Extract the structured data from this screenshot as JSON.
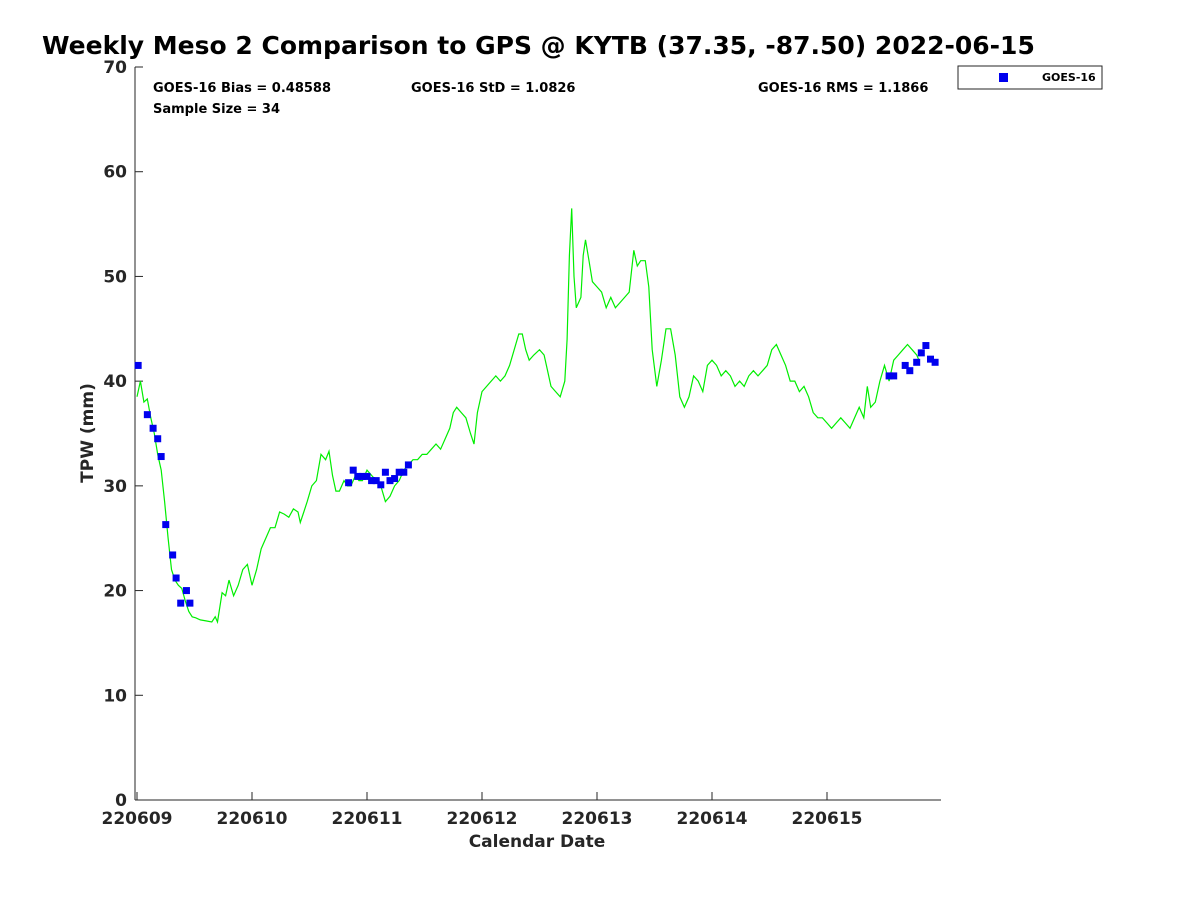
{
  "chart_data": {
    "type": "scatter",
    "title": "Weekly Meso 2 Comparison to GPS @ KYTB (37.35, -87.50) 2022-06-15",
    "xlabel": "Calendar Date",
    "ylabel": "TPW (mm)",
    "xlim": [
      0,
      7.0
    ],
    "ylim": [
      0,
      70
    ],
    "x_ticks": [
      {
        "x": 0,
        "label": "220609"
      },
      {
        "x": 1,
        "label": "220610"
      },
      {
        "x": 2,
        "label": "220611"
      },
      {
        "x": 3,
        "label": "220612"
      },
      {
        "x": 4,
        "label": "220613"
      },
      {
        "x": 5,
        "label": "220614"
      },
      {
        "x": 6,
        "label": "220615"
      }
    ],
    "y_ticks": [
      0,
      10,
      20,
      30,
      40,
      50,
      60,
      70
    ],
    "stats": {
      "bias": "GOES-16 Bias = 0.48588",
      "std": "GOES-16 StD = 1.0826",
      "rms": "GOES-16 RMS = 1.1866",
      "sample": "Sample Size = 34"
    },
    "legend": {
      "position": "top-right, outside plot",
      "entries": [
        {
          "name": "GOES-16",
          "color": "#0000ee"
        }
      ]
    },
    "colors": {
      "gps_line": "#00ee00",
      "goes_points": "#0000ee"
    },
    "series": [
      {
        "name": "GPS",
        "kind": "line",
        "points": [
          [
            0.0,
            38.5
          ],
          [
            0.03,
            40.0
          ],
          [
            0.06,
            38.0
          ],
          [
            0.09,
            38.3
          ],
          [
            0.12,
            36.5
          ],
          [
            0.15,
            35.0
          ],
          [
            0.18,
            33.0
          ],
          [
            0.21,
            31.5
          ],
          [
            0.24,
            28.5
          ],
          [
            0.27,
            25.0
          ],
          [
            0.3,
            22.0
          ],
          [
            0.33,
            21.0
          ],
          [
            0.36,
            20.5
          ],
          [
            0.39,
            20.2
          ],
          [
            0.42,
            19.0
          ],
          [
            0.45,
            18.0
          ],
          [
            0.48,
            17.5
          ],
          [
            0.51,
            17.4
          ],
          [
            0.55,
            17.2
          ],
          [
            0.6,
            17.1
          ],
          [
            0.65,
            17.0
          ],
          [
            0.68,
            17.5
          ],
          [
            0.7,
            17.0
          ],
          [
            0.74,
            19.8
          ],
          [
            0.77,
            19.5
          ],
          [
            0.8,
            21.0
          ],
          [
            0.84,
            19.5
          ],
          [
            0.88,
            20.5
          ],
          [
            0.92,
            22.0
          ],
          [
            0.96,
            22.5
          ],
          [
            1.0,
            20.5
          ],
          [
            1.04,
            22.0
          ],
          [
            1.08,
            24.0
          ],
          [
            1.12,
            25.0
          ],
          [
            1.16,
            26.0
          ],
          [
            1.2,
            26.0
          ],
          [
            1.24,
            27.5
          ],
          [
            1.28,
            27.3
          ],
          [
            1.32,
            27.0
          ],
          [
            1.36,
            27.8
          ],
          [
            1.4,
            27.5
          ],
          [
            1.42,
            26.5
          ],
          [
            1.45,
            27.5
          ],
          [
            1.48,
            28.5
          ],
          [
            1.52,
            30.0
          ],
          [
            1.56,
            30.5
          ],
          [
            1.6,
            33.0
          ],
          [
            1.64,
            32.5
          ],
          [
            1.67,
            33.3
          ],
          [
            1.7,
            31.0
          ],
          [
            1.73,
            29.5
          ],
          [
            1.76,
            29.5
          ],
          [
            1.8,
            30.5
          ],
          [
            1.83,
            30.0
          ],
          [
            1.86,
            30.0
          ],
          [
            1.9,
            31.0
          ],
          [
            1.93,
            30.5
          ],
          [
            1.96,
            30.5
          ],
          [
            2.0,
            31.5
          ],
          [
            2.04,
            31.0
          ],
          [
            2.08,
            30.5
          ],
          [
            2.12,
            30.0
          ],
          [
            2.16,
            28.5
          ],
          [
            2.2,
            29.0
          ],
          [
            2.24,
            30.0
          ],
          [
            2.28,
            30.5
          ],
          [
            2.32,
            31.5
          ],
          [
            2.36,
            32.0
          ],
          [
            2.4,
            32.5
          ],
          [
            2.44,
            32.5
          ],
          [
            2.48,
            33.0
          ],
          [
            2.52,
            33.0
          ],
          [
            2.56,
            33.5
          ],
          [
            2.6,
            34.0
          ],
          [
            2.64,
            33.5
          ],
          [
            2.68,
            34.5
          ],
          [
            2.72,
            35.5
          ],
          [
            2.75,
            37.0
          ],
          [
            2.78,
            37.5
          ],
          [
            2.82,
            37.0
          ],
          [
            2.86,
            36.5
          ],
          [
            2.9,
            35.0
          ],
          [
            2.93,
            34.0
          ],
          [
            2.96,
            37.0
          ],
          [
            3.0,
            39.0
          ],
          [
            3.04,
            39.5
          ],
          [
            3.08,
            40.0
          ],
          [
            3.12,
            40.5
          ],
          [
            3.16,
            40.0
          ],
          [
            3.2,
            40.5
          ],
          [
            3.24,
            41.5
          ],
          [
            3.28,
            43.0
          ],
          [
            3.32,
            44.5
          ],
          [
            3.35,
            44.5
          ],
          [
            3.38,
            43.0
          ],
          [
            3.41,
            42.0
          ],
          [
            3.45,
            42.5
          ],
          [
            3.5,
            43.0
          ],
          [
            3.54,
            42.5
          ],
          [
            3.56,
            41.5
          ],
          [
            3.6,
            39.5
          ],
          [
            3.64,
            39.0
          ],
          [
            3.68,
            38.5
          ],
          [
            3.72,
            40.0
          ],
          [
            3.74,
            44.0
          ],
          [
            3.76,
            52.0
          ],
          [
            3.78,
            56.5
          ],
          [
            3.8,
            50.0
          ],
          [
            3.82,
            47.0
          ],
          [
            3.86,
            48.0
          ],
          [
            3.88,
            52.0
          ],
          [
            3.9,
            53.5
          ],
          [
            3.93,
            51.5
          ],
          [
            3.96,
            49.5
          ],
          [
            4.0,
            49.0
          ],
          [
            4.04,
            48.5
          ],
          [
            4.08,
            47.0
          ],
          [
            4.12,
            48.0
          ],
          [
            4.16,
            47.0
          ],
          [
            4.2,
            47.5
          ],
          [
            4.24,
            48.0
          ],
          [
            4.28,
            48.5
          ],
          [
            4.32,
            52.5
          ],
          [
            4.35,
            51.0
          ],
          [
            4.38,
            51.5
          ],
          [
            4.42,
            51.5
          ],
          [
            4.45,
            49.0
          ],
          [
            4.48,
            43.0
          ],
          [
            4.52,
            39.5
          ],
          [
            4.56,
            42.0
          ],
          [
            4.6,
            45.0
          ],
          [
            4.64,
            45.0
          ],
          [
            4.68,
            42.5
          ],
          [
            4.72,
            38.5
          ],
          [
            4.76,
            37.5
          ],
          [
            4.8,
            38.5
          ],
          [
            4.84,
            40.5
          ],
          [
            4.88,
            40.0
          ],
          [
            4.92,
            39.0
          ],
          [
            4.96,
            41.5
          ],
          [
            5.0,
            42.0
          ],
          [
            5.04,
            41.5
          ],
          [
            5.08,
            40.5
          ],
          [
            5.12,
            41.0
          ],
          [
            5.16,
            40.5
          ],
          [
            5.2,
            39.5
          ],
          [
            5.24,
            40.0
          ],
          [
            5.28,
            39.5
          ],
          [
            5.32,
            40.5
          ],
          [
            5.36,
            41.0
          ],
          [
            5.4,
            40.5
          ],
          [
            5.44,
            41.0
          ],
          [
            5.48,
            41.5
          ],
          [
            5.52,
            43.0
          ],
          [
            5.56,
            43.5
          ],
          [
            5.6,
            42.5
          ],
          [
            5.64,
            41.5
          ],
          [
            5.68,
            40.0
          ],
          [
            5.72,
            40.0
          ],
          [
            5.76,
            39.0
          ],
          [
            5.8,
            39.5
          ],
          [
            5.84,
            38.5
          ],
          [
            5.88,
            37.0
          ],
          [
            5.92,
            36.5
          ],
          [
            5.96,
            36.5
          ],
          [
            6.0,
            36.0
          ],
          [
            6.04,
            35.5
          ],
          [
            6.08,
            36.0
          ],
          [
            6.12,
            36.5
          ],
          [
            6.16,
            36.0
          ],
          [
            6.2,
            35.5
          ],
          [
            6.24,
            36.5
          ],
          [
            6.28,
            37.5
          ],
          [
            6.32,
            36.5
          ],
          [
            6.35,
            39.5
          ],
          [
            6.38,
            37.5
          ],
          [
            6.42,
            38.0
          ],
          [
            6.46,
            40.0
          ],
          [
            6.5,
            41.5
          ],
          [
            6.54,
            40.0
          ],
          [
            6.58,
            42.0
          ],
          [
            6.62,
            42.5
          ],
          [
            6.66,
            43.0
          ],
          [
            6.7,
            43.5
          ],
          [
            6.74,
            43.0
          ],
          [
            6.78,
            42.5
          ],
          [
            6.8,
            42.0
          ]
        ]
      },
      {
        "name": "GOES-16",
        "kind": "markers",
        "points": [
          [
            0.01,
            41.5
          ],
          [
            0.09,
            36.8
          ],
          [
            0.14,
            35.5
          ],
          [
            0.18,
            34.5
          ],
          [
            0.21,
            32.8
          ],
          [
            0.25,
            26.3
          ],
          [
            0.31,
            23.4
          ],
          [
            0.34,
            21.2
          ],
          [
            0.38,
            18.8
          ],
          [
            0.43,
            20.0
          ],
          [
            0.46,
            18.8
          ],
          [
            1.84,
            30.3
          ],
          [
            1.88,
            31.5
          ],
          [
            1.92,
            30.9
          ],
          [
            1.96,
            30.9
          ],
          [
            2.0,
            30.9
          ],
          [
            2.04,
            30.5
          ],
          [
            2.08,
            30.5
          ],
          [
            2.12,
            30.1
          ],
          [
            2.16,
            31.3
          ],
          [
            2.2,
            30.5
          ],
          [
            2.24,
            30.7
          ],
          [
            2.28,
            31.3
          ],
          [
            2.32,
            31.3
          ],
          [
            2.36,
            32.0
          ],
          [
            6.54,
            40.5
          ],
          [
            6.58,
            40.5
          ],
          [
            6.68,
            41.5
          ],
          [
            6.72,
            41.0
          ],
          [
            6.78,
            41.8
          ],
          [
            6.82,
            42.7
          ],
          [
            6.86,
            43.4
          ],
          [
            6.9,
            42.1
          ],
          [
            6.94,
            41.8
          ]
        ]
      }
    ]
  }
}
